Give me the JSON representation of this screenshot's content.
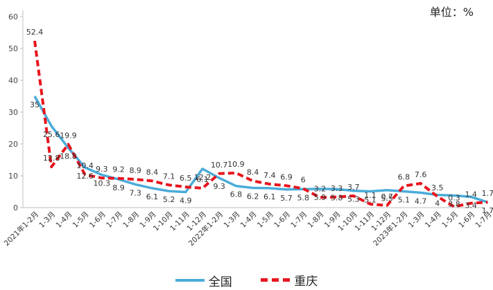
{
  "unit_label": "单位：%",
  "chart_data": {
    "type": "line",
    "categories": [
      "2021年1-2月",
      "1-3月",
      "1-4月",
      "1-5月",
      "1-6月",
      "1-7月",
      "1-8月",
      "1-9月",
      "1-10月",
      "1-11月",
      "1-12月",
      "2022年1-2月",
      "1-3月",
      "1-4月",
      "1-5月",
      "1-6月",
      "1-7月",
      "1-8月",
      "1-9月",
      "1-10月",
      "1-11月",
      "1-12月",
      "2023年1-2月",
      "1-3月",
      "1-4月",
      "1-5月",
      "1-6月",
      "1-7月"
    ],
    "series": [
      {
        "name": "全国",
        "color": "#4aacd9",
        "values": [
          35,
          25.6,
          18.8,
          12.6,
          10.3,
          8.9,
          7.3,
          6.1,
          5.2,
          4.9,
          12.2,
          9.3,
          6.8,
          6.2,
          6.1,
          5.7,
          5.8,
          5.9,
          5.8,
          5.3,
          5.1,
          5.5,
          5.1,
          4.7,
          4,
          3.8,
          3.4,
          1.7
        ]
      },
      {
        "name": "重庆",
        "color": "#e8141e",
        "values": [
          52.4,
          12.8,
          19.9,
          10.4,
          9.3,
          9.2,
          8.9,
          8.4,
          7.1,
          6.5,
          6.1,
          10.7,
          10.9,
          8.4,
          7.4,
          6.9,
          6,
          3.2,
          3.3,
          3.7,
          1.1,
          0.7,
          6.8,
          7.6,
          3.5,
          0.3,
          1.4,
          1.7
        ]
      }
    ],
    "ylim": [
      0,
      60
    ],
    "yticks": [
      0,
      10,
      20,
      30,
      40,
      50,
      60
    ],
    "grid": false,
    "legend": "bottom"
  }
}
